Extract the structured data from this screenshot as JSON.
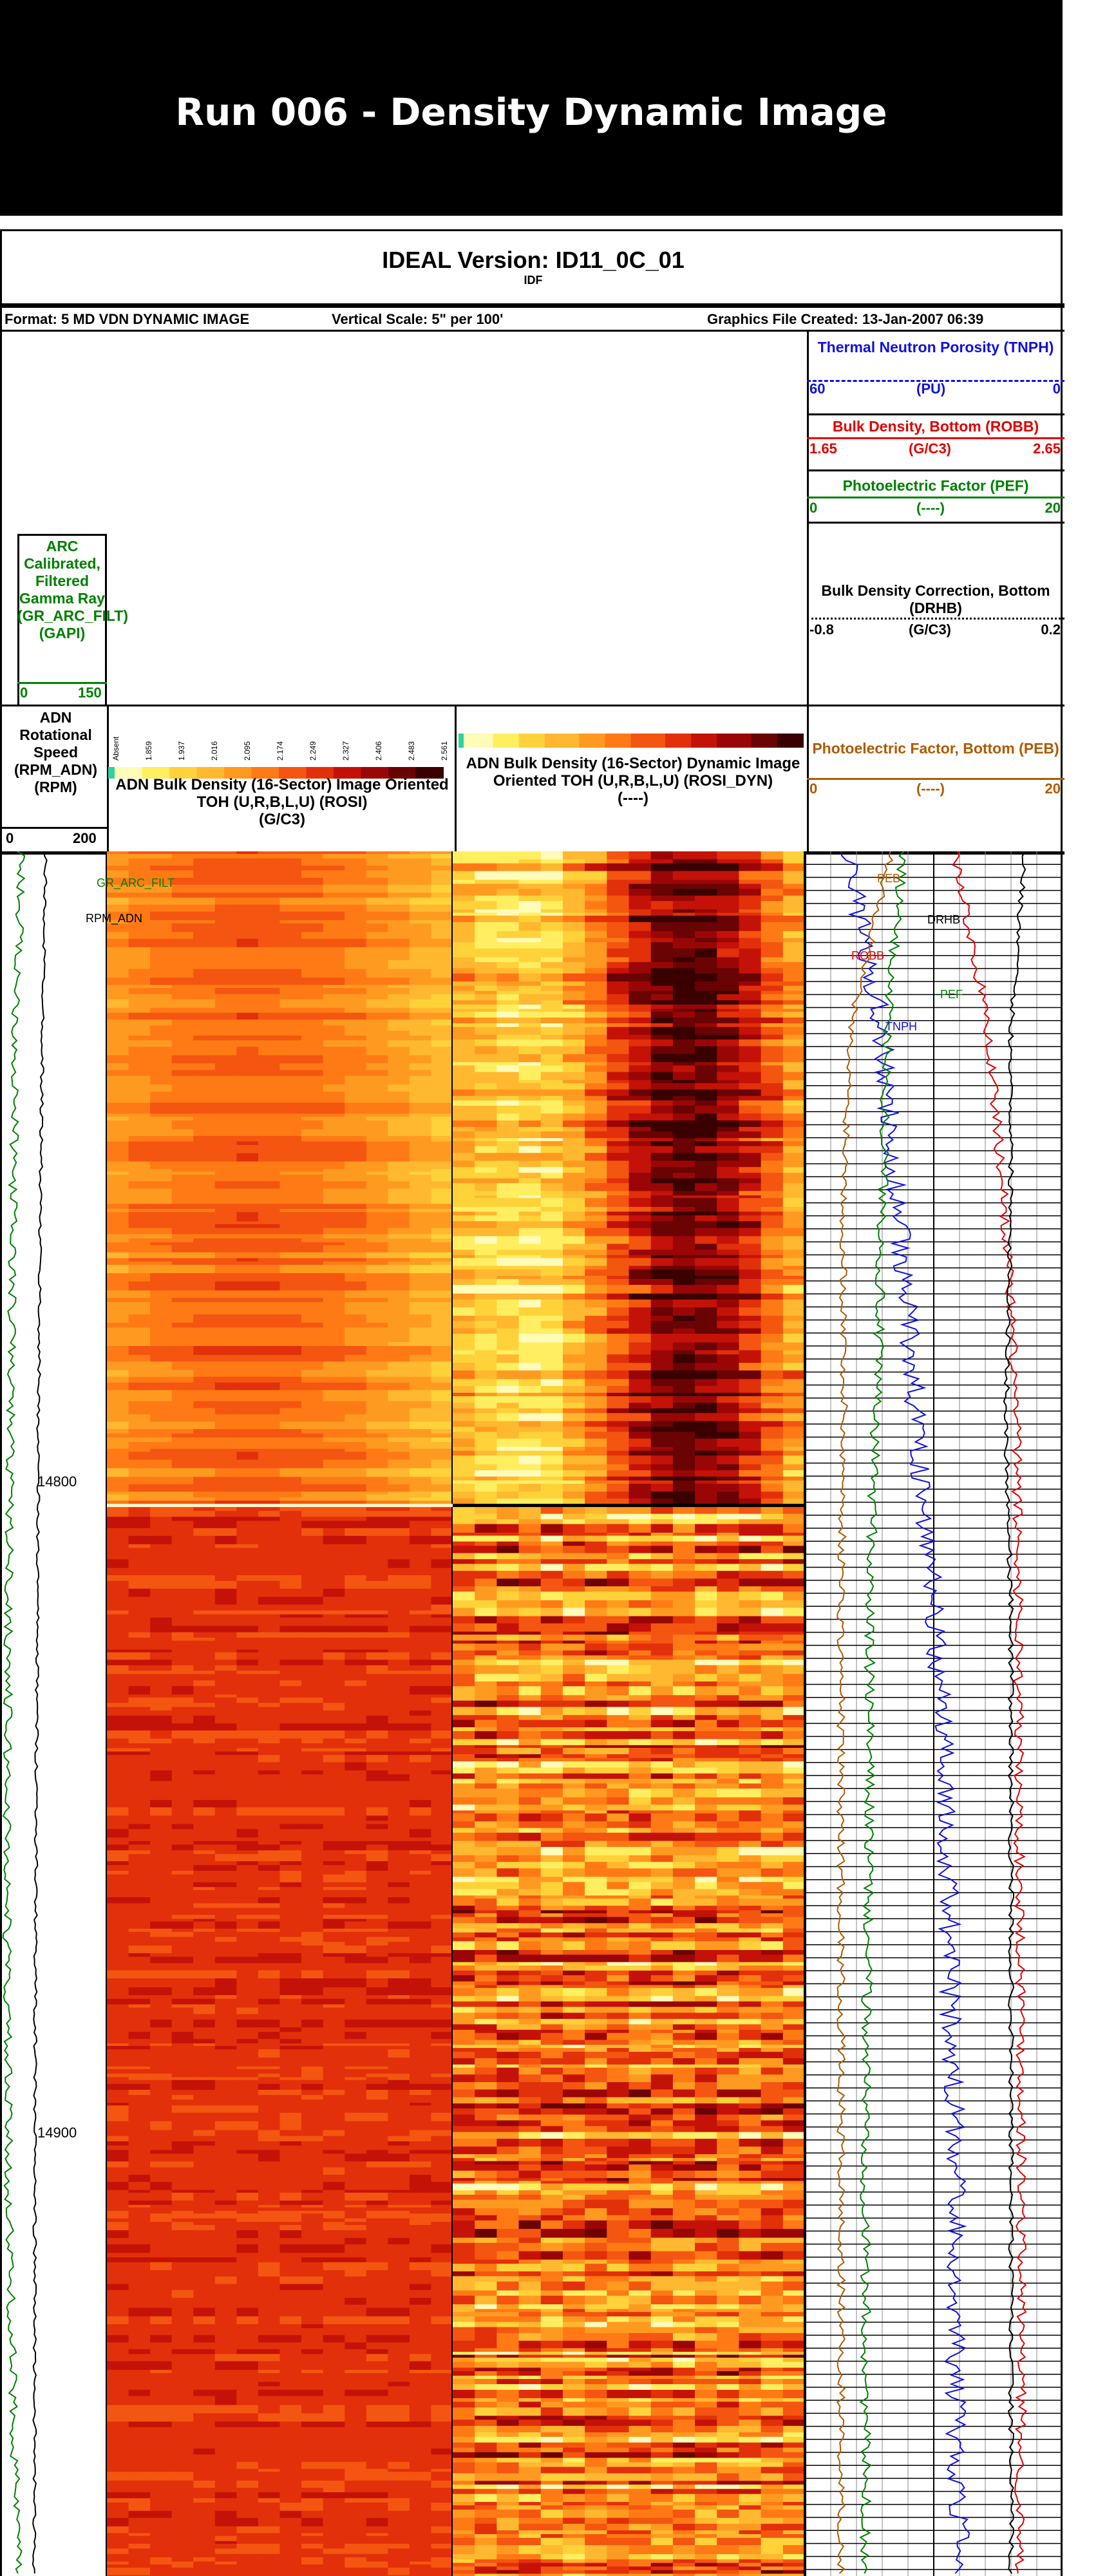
{
  "banner": {
    "title": "Run 006 - Density Dynamic Image"
  },
  "header": {
    "title": "IDEAL Version: ID11_0C_01",
    "subtitle": "IDF",
    "format": "Format: 5 MD VDN DYNAMIC IMAGE",
    "vertical_scale": "Vertical Scale:   5\" per 100'",
    "graphics_file": "Graphics File Created: 13-Jan-2007 06:39"
  },
  "curves": {
    "tnph": {
      "name": "Thermal Neutron Porosity (TNPH)",
      "unit": "(PU)",
      "left": "60",
      "right": "0",
      "color": "#1010e0"
    },
    "robb": {
      "name": "Bulk Density, Bottom (ROBB)",
      "unit": "(G/C3)",
      "left": "1.65",
      "right": "2.65",
      "color": "#e00000"
    },
    "pef": {
      "name": "Photoelectric Factor (PEF)",
      "unit": "(----)",
      "left": "0",
      "right": "20",
      "color": "#008000"
    },
    "drhb": {
      "name": "Bulk Density Correction, Bottom (DRHB)",
      "unit": "(G/C3)",
      "left": "-0.8",
      "right": "0.2",
      "color": "#000000"
    },
    "peb": {
      "name": "Photoelectric Factor, Bottom (PEB)",
      "unit": "(----)",
      "left": "0",
      "right": "20",
      "color": "#b05a00"
    },
    "gr": {
      "name": "ARC Calibrated, Filtered Gamma Ray (GR_ARC_FILT)",
      "unit": "(GAPI)",
      "left": "0",
      "right": "150",
      "color": "#008000"
    },
    "rpm": {
      "name": "ADN Rotational Speed (RPM_ADN)",
      "unit": "(RPM)",
      "left": "0",
      "right": "200",
      "color": "#000000"
    }
  },
  "tracks": {
    "static": {
      "title": "ADN Bulk Density (16-Sector) Image Oriented TOH (U,R,B,L,U) (ROSI)",
      "unit": "(G/C3)"
    },
    "dynamic": {
      "title": "ADN Bulk Density (16-Sector) Dynamic Image Oriented TOH (U,R,B,L,U) (ROSI_DYN)",
      "unit": "(----)"
    }
  },
  "colorbar_ticks": [
    "Absent",
    "1.859",
    "1.937",
    "2.016",
    "2.095",
    "2.174",
    "2.249",
    "2.327",
    "2.406",
    "2.483",
    "2.561"
  ],
  "curve_labels": {
    "gr": "GR_ARC_FILT",
    "rpm": "RPM_ADN",
    "peb": "PEB",
    "drhb": "DRHB",
    "robb": "ROBB",
    "pef": "PEF",
    "tnph": "TNPH"
  },
  "chart_data": {
    "type": "heatmap",
    "title": "Run 006 - Density Dynamic Image",
    "depth_ticks": [
      14800,
      14900
    ],
    "depth_range": [
      14703,
      14968
    ],
    "y_unit": "ft",
    "static_image": {
      "units": "G/C3",
      "range": [
        1.859,
        2.561
      ],
      "sectors": 16
    },
    "dynamic_image": {
      "units": "----",
      "sectors": 16
    },
    "series": [
      {
        "name": "GR_ARC_FILT",
        "depth": [
          14705,
          14730,
          14760,
          14790,
          14820,
          14850,
          14880,
          14910,
          14940,
          14965
        ],
        "values": [
          30,
          22,
          18,
          15,
          12,
          10,
          10,
          12,
          18,
          25
        ]
      },
      {
        "name": "RPM_ADN",
        "depth": [
          14705,
          14730,
          14760,
          14790,
          14820,
          14850,
          14880,
          14910,
          14940,
          14965
        ],
        "values": [
          85,
          80,
          75,
          72,
          70,
          68,
          66,
          65,
          65,
          64
        ]
      },
      {
        "name": "TNPH",
        "depth": [
          14705,
          14730,
          14760,
          14790,
          14820,
          14850,
          14880,
          14910,
          14940,
          14965
        ],
        "values": [
          50,
          42,
          38,
          34,
          30,
          27,
          26,
          25,
          25,
          24
        ]
      },
      {
        "name": "ROBB",
        "depth": [
          14705,
          14730,
          14760,
          14790,
          14820,
          14850,
          14880,
          14910,
          14940,
          14965
        ],
        "values": [
          2.24,
          2.36,
          2.43,
          2.47,
          2.48,
          2.48,
          2.49,
          2.49,
          2.49,
          2.48
        ]
      },
      {
        "name": "PEF",
        "depth": [
          14705,
          14730,
          14760,
          14790,
          14820,
          14850,
          14880,
          14910,
          14940,
          14965
        ],
        "values": [
          7.5,
          6.4,
          6.0,
          5.5,
          5.0,
          5.0,
          4.8,
          4.7,
          4.7,
          4.7
        ]
      },
      {
        "name": "PEB",
        "depth": [
          14705,
          14730,
          14760,
          14790,
          14820,
          14850,
          14880,
          14910,
          14940,
          14965
        ],
        "values": [
          6.5,
          3.5,
          3.0,
          3.0,
          2.8,
          2.8,
          2.8,
          2.8,
          2.8,
          2.8
        ]
      },
      {
        "name": "DRHB",
        "depth": [
          14705,
          14730,
          14760,
          14790,
          14820,
          14850,
          14880,
          14910,
          14940,
          14965
        ],
        "values": [
          0.05,
          0.0,
          0.0,
          -0.02,
          0.0,
          0.0,
          0.0,
          0.0,
          0.0,
          0.0
        ]
      }
    ]
  }
}
